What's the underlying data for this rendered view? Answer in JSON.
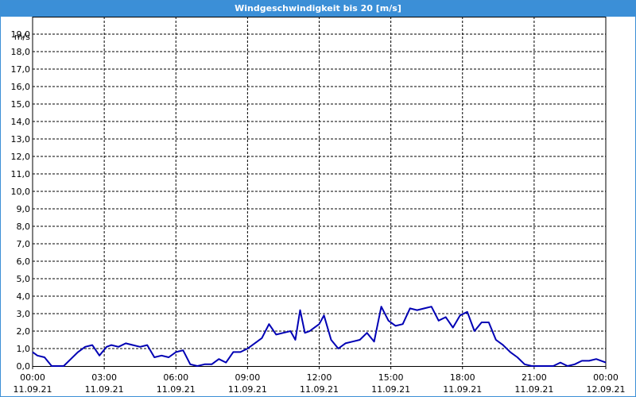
{
  "window": {
    "title": "Windgeschwindigkeit bis 20 [m/s]"
  },
  "colors": {
    "line": "#0000b4",
    "grid": "#000000",
    "titlebar": "#3b8fd7"
  },
  "chart_data": {
    "type": "line",
    "title": "Windgeschwindigkeit bis 20 [m/s]",
    "ylabel": "m/s",
    "ylim": [
      0,
      20
    ],
    "grid": true,
    "y_ticks": [
      "0,0",
      "1,0",
      "2,0",
      "3,0",
      "4,0",
      "5,0",
      "6,0",
      "7,0",
      "8,0",
      "9,0",
      "10,0",
      "11,0",
      "12,0",
      "13,0",
      "14,0",
      "15,0",
      "16,0",
      "17,0",
      "18,0",
      "19,0"
    ],
    "x_ticks": [
      {
        "time": "00:00",
        "date": "11.09.21"
      },
      {
        "time": "03:00",
        "date": "11.09.21"
      },
      {
        "time": "06:00",
        "date": "11.09.21"
      },
      {
        "time": "09:00",
        "date": "11.09.21"
      },
      {
        "time": "12:00",
        "date": "11.09.21"
      },
      {
        "time": "15:00",
        "date": "11.09.21"
      },
      {
        "time": "18:00",
        "date": "11.09.21"
      },
      {
        "time": "21:00",
        "date": "11.09.21"
      },
      {
        "time": "00:00",
        "date": "12.09.21"
      }
    ],
    "series": [
      {
        "x_hours": [
          0,
          0.2,
          0.5,
          0.8,
          1.0,
          1.3,
          1.6,
          1.9,
          2.2,
          2.5,
          2.8,
          3.1,
          3.3,
          3.6,
          3.9,
          4.2,
          4.5,
          4.8,
          5.1,
          5.4,
          5.7,
          6.0,
          6.3,
          6.6,
          6.9,
          7.2,
          7.5,
          7.8,
          8.1,
          8.4,
          8.7,
          9.0,
          9.3,
          9.6,
          9.9,
          10.2,
          10.5,
          10.8,
          11.0,
          11.2,
          11.4,
          11.6,
          11.8,
          12.0,
          12.2,
          12.5,
          12.8,
          13.1,
          13.4,
          13.7,
          14.0,
          14.3,
          14.6,
          14.9,
          15.2,
          15.5,
          15.8,
          16.1,
          16.4,
          16.7,
          17.0,
          17.3,
          17.6,
          17.9,
          18.2,
          18.5,
          18.8,
          19.1,
          19.4,
          19.7,
          20.0,
          20.3,
          20.6,
          20.9,
          21.2,
          21.5,
          21.8,
          22.1,
          22.4,
          22.7,
          23.0,
          23.3,
          23.6,
          24.0
        ],
        "y": [
          0.8,
          0.6,
          0.5,
          0.0,
          0.0,
          0.0,
          0.4,
          0.8,
          1.1,
          1.2,
          0.6,
          1.1,
          1.2,
          1.1,
          1.3,
          1.2,
          1.1,
          1.2,
          0.5,
          0.6,
          0.5,
          0.8,
          0.9,
          0.1,
          0.0,
          0.1,
          0.1,
          0.4,
          0.2,
          0.8,
          0.8,
          1.0,
          1.3,
          1.6,
          2.4,
          1.8,
          1.9,
          2.0,
          1.5,
          3.2,
          1.9,
          2.0,
          2.2,
          2.4,
          2.9,
          1.5,
          1.0,
          1.3,
          1.4,
          1.5,
          1.9,
          1.4,
          3.4,
          2.6,
          2.3,
          2.4,
          3.3,
          3.2,
          3.3,
          3.4,
          2.6,
          2.8,
          2.2,
          2.9,
          3.1,
          2.0,
          2.5,
          2.5,
          1.5,
          1.2,
          0.8,
          0.5,
          0.1,
          0.0,
          0.0,
          0.0,
          0.0,
          0.2,
          0.0,
          0.1,
          0.3,
          0.3,
          0.4,
          0.2
        ]
      }
    ]
  }
}
